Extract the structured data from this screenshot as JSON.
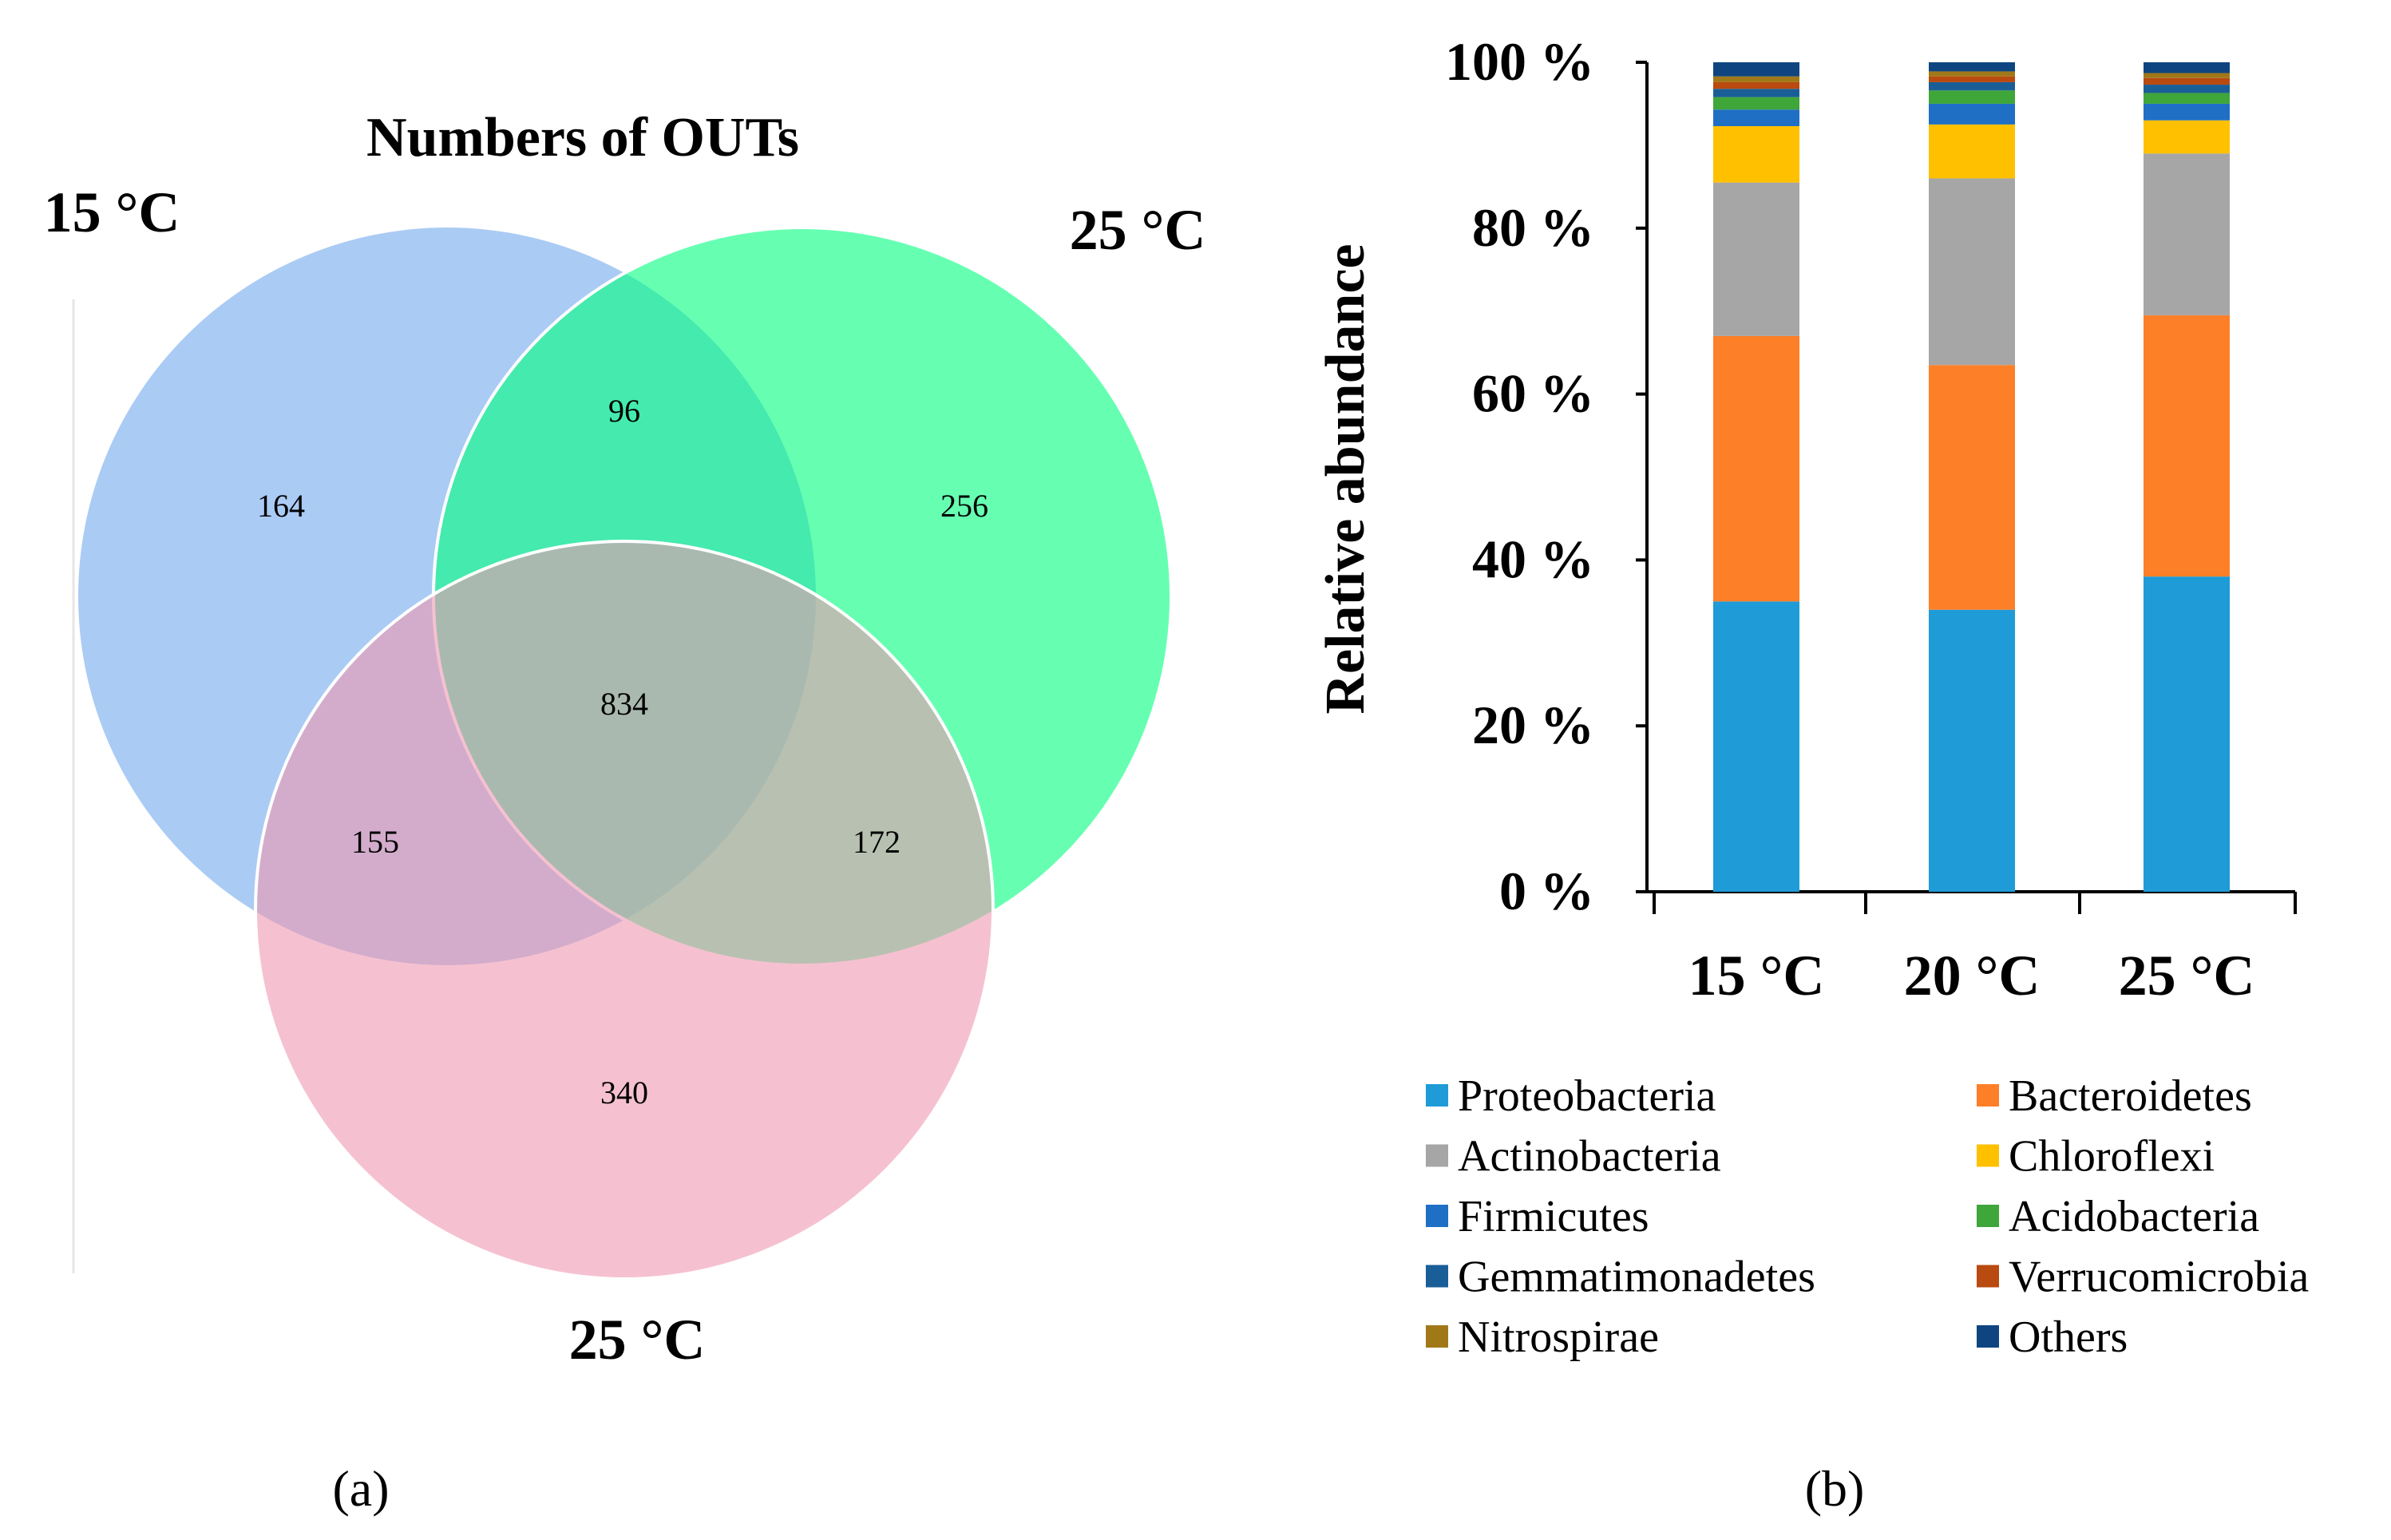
{
  "chart_data": [
    {
      "type": "venn",
      "panel_label": "(a)",
      "title": "Numbers of OUTs",
      "sets": [
        {
          "name": "15 °C",
          "color": "#a5c8f3"
        },
        {
          "name": "25 °C",
          "color": "#00ff7f"
        },
        {
          "name": "25 °C",
          "color": "#ee97b0"
        }
      ],
      "regions": {
        "only_a": "164",
        "only_b": "256",
        "only_c": "340",
        "ab": "96",
        "ac": "155",
        "bc": "172",
        "abc": "834"
      }
    },
    {
      "type": "bar",
      "stacked": true,
      "panel_label": "(b)",
      "ylabel": "Relative abundance",
      "xlabel": "",
      "ylim": [
        0,
        100
      ],
      "yticks": [
        "0 %",
        "20 %",
        "40 %",
        "60 %",
        "80 %",
        "100 %"
      ],
      "categories": [
        "15 °C",
        "20 °C",
        "25 °C"
      ],
      "series": [
        {
          "name": "Proteobacteria",
          "color": "#1f9bd7",
          "values": [
            35.0,
            34.0,
            38.0
          ]
        },
        {
          "name": "Bacteroidetes",
          "color": "#fd7f28",
          "values": [
            32.0,
            29.5,
            31.5
          ]
        },
        {
          "name": "Actinobacteria",
          "color": "#a6a6a6",
          "values": [
            18.5,
            22.5,
            19.5
          ]
        },
        {
          "name": "Chloroflexi",
          "color": "#ffc000",
          "values": [
            6.8,
            6.5,
            4.0
          ]
        },
        {
          "name": "Firmicutes",
          "color": "#1f6fc5",
          "values": [
            2.0,
            2.5,
            2.0
          ]
        },
        {
          "name": "Acidobacteria",
          "color": "#3fa63a",
          "values": [
            1.5,
            1.6,
            1.3
          ]
        },
        {
          "name": "Gemmatimonadetes",
          "color": "#1a5e97",
          "values": [
            1.0,
            1.0,
            1.0
          ]
        },
        {
          "name": "Verrucomicrobia",
          "color": "#b94a10",
          "values": [
            0.8,
            0.7,
            0.8
          ]
        },
        {
          "name": "Nitrospirae",
          "color": "#a07818",
          "values": [
            0.7,
            0.6,
            0.6
          ]
        },
        {
          "name": "Others",
          "color": "#0e4580",
          "values": [
            1.7,
            1.1,
            1.3
          ]
        }
      ]
    }
  ]
}
